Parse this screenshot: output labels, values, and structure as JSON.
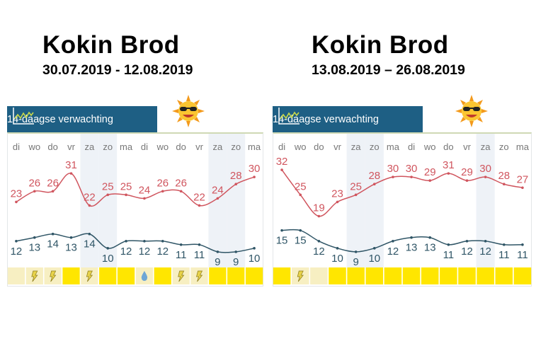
{
  "chart_data": [
    {
      "type": "line",
      "title": "Kokin Brod",
      "subtitle": "30.07.2019 - 12.08.2019",
      "panel_title": "14-daagse verwachting",
      "categories": [
        "di",
        "wo",
        "do",
        "vr",
        "za",
        "zo",
        "ma",
        "di",
        "wo",
        "do",
        "vr",
        "za",
        "zo",
        "ma"
      ],
      "weekend_columns": [
        4,
        5,
        11,
        12
      ],
      "series": [
        {
          "name": "max",
          "color": "#d0555e",
          "values": [
            23,
            26,
            26,
            31,
            22,
            25,
            25,
            24,
            26,
            26,
            22,
            24,
            28,
            30
          ]
        },
        {
          "name": "min",
          "color": "#2f5566",
          "values": [
            12,
            13,
            14,
            13,
            14,
            10,
            12,
            12,
            12,
            11,
            11,
            9,
            9,
            10
          ]
        }
      ],
      "weather": [
        "none",
        "thunder",
        "thunder",
        "sun",
        "thunder",
        "sun",
        "sun",
        "rain",
        "sun",
        "thunder",
        "thunder",
        "sun",
        "sun",
        "sun"
      ],
      "ylim": [
        5,
        35
      ]
    },
    {
      "type": "line",
      "title": "Kokin Brod",
      "subtitle": "13.08.2019 – 26.08.2019",
      "panel_title": "14-daagse verwachting",
      "categories": [
        "di",
        "wo",
        "do",
        "vr",
        "za",
        "zo",
        "ma",
        "di",
        "wo",
        "do",
        "vr",
        "za",
        "zo",
        "ma"
      ],
      "weekend_columns": [
        4,
        5,
        11
      ],
      "series": [
        {
          "name": "max",
          "color": "#d0555e",
          "values": [
            32,
            25,
            19,
            23,
            25,
            28,
            30,
            30,
            29,
            31,
            29,
            30,
            28,
            27
          ]
        },
        {
          "name": "min",
          "color": "#2f5566",
          "values": [
            15,
            15,
            12,
            10,
            9,
            10,
            12,
            13,
            13,
            11,
            12,
            12,
            11,
            11
          ]
        }
      ],
      "weather": [
        "sun",
        "thunder",
        "none",
        "sun",
        "sun",
        "sun",
        "sun",
        "sun",
        "sun",
        "sun",
        "sun",
        "sun",
        "sun",
        "sun"
      ],
      "ylim": [
        5,
        35
      ]
    }
  ],
  "colors": {
    "header": "#1e5f84",
    "sun_cell": "#ffe600",
    "pale_cell": "#f7efc2",
    "weekend": "#eef2f7"
  }
}
